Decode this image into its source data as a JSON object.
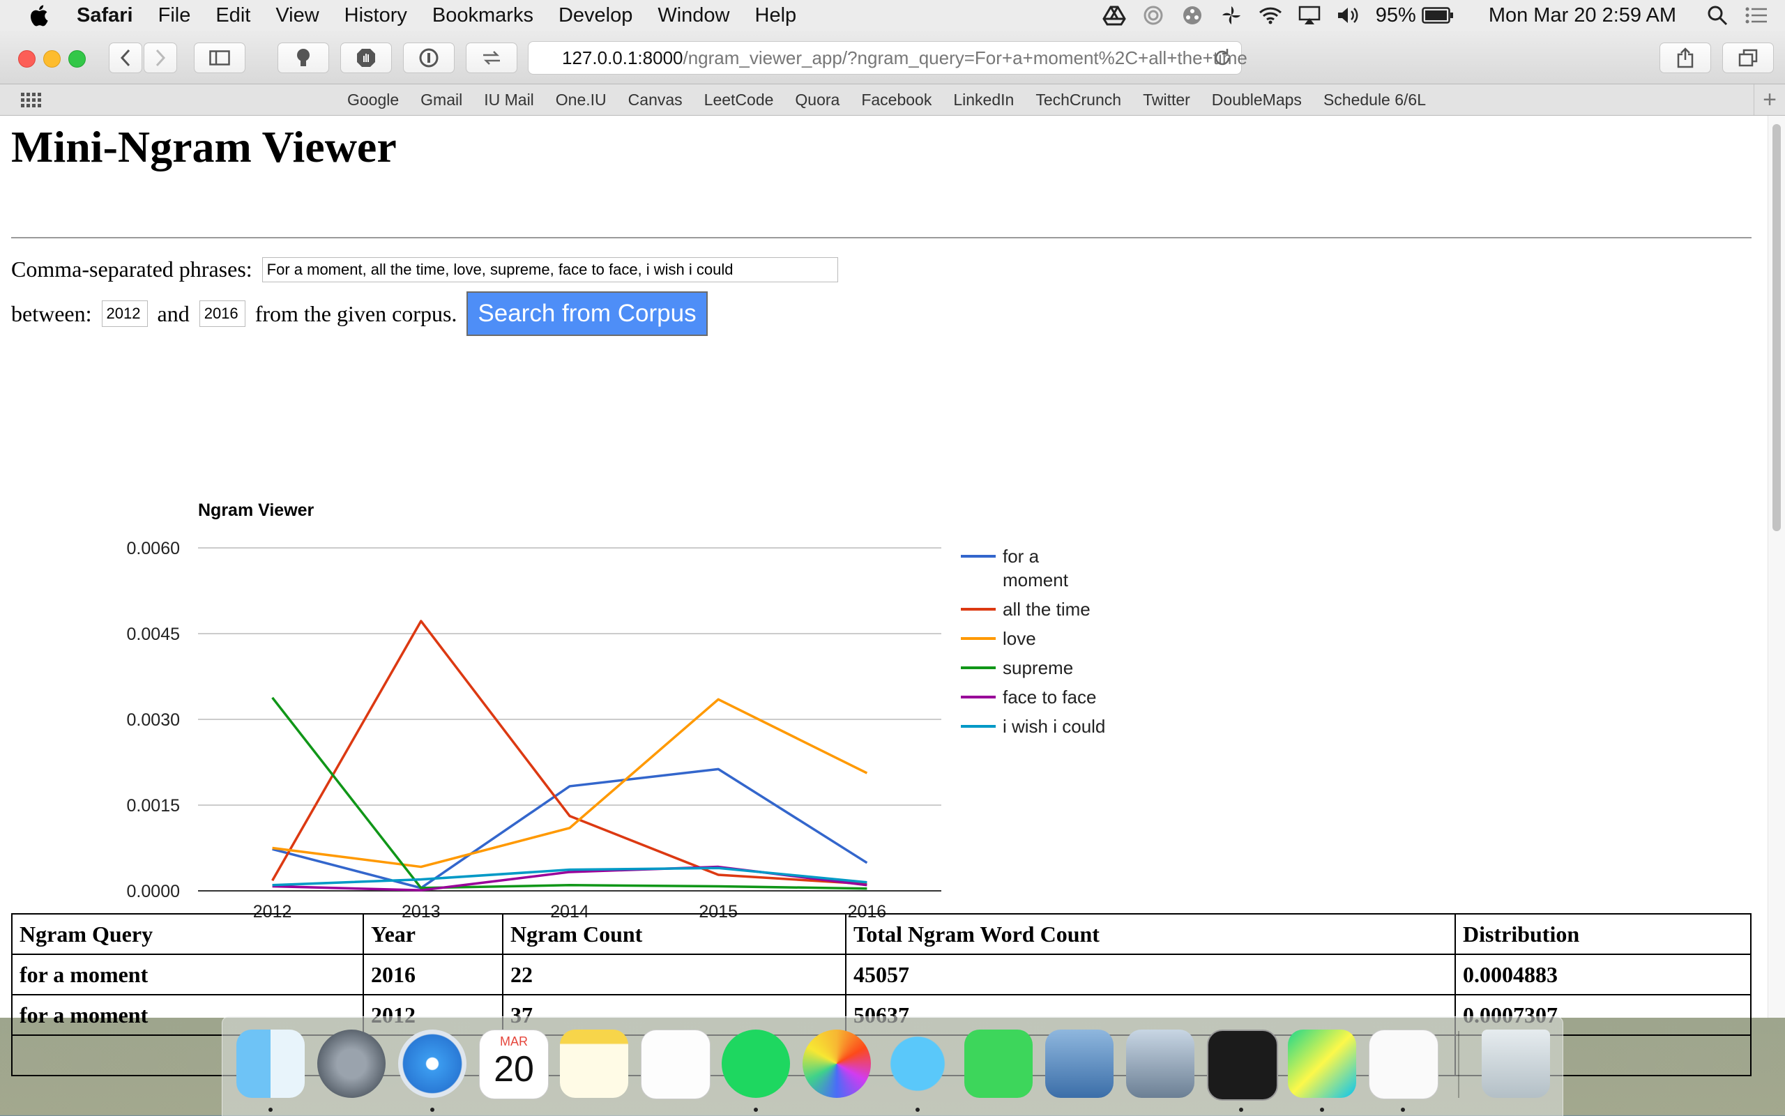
{
  "menubar": {
    "app_name": "Safari",
    "items": [
      "File",
      "Edit",
      "View",
      "History",
      "Bookmarks",
      "Develop",
      "Window",
      "Help"
    ],
    "battery": "95%",
    "datetime": "Mon Mar 20  2:59 AM"
  },
  "browser": {
    "url_host": "127.0.0.1:8000",
    "url_path": "/ngram_viewer_app/?ngram_query=For+a+moment%2C+all+the+time",
    "favorites": [
      "Google",
      "Gmail",
      "IU Mail",
      "One.IU",
      "Canvas",
      "LeetCode",
      "Quora",
      "Facebook",
      "LinkedIn",
      "TechCrunch",
      "Twitter",
      "DoubleMaps",
      "Schedule 6/6L"
    ]
  },
  "page": {
    "title": "Mini-Ngram Viewer",
    "phrases_label": "Comma-separated phrases:",
    "phrases_value": "For a moment, all the time, love, supreme, face to face, i wish i could",
    "between_label": "between:",
    "and_label": "and",
    "start_year": "2012",
    "end_year": "2016",
    "corpus_label": "from the given corpus.",
    "search_button": "Search from Corpus"
  },
  "chart_data": {
    "type": "line",
    "title": "Ngram Viewer",
    "x": [
      2012,
      2013,
      2014,
      2015,
      2016
    ],
    "ylim": [
      0,
      0.006
    ],
    "yticks": [
      "0.0000",
      "0.0015",
      "0.0030",
      "0.0045",
      "0.0060"
    ],
    "grid": true,
    "legend": "right",
    "series": [
      {
        "name": "for a moment",
        "color": "#3366cc",
        "values": [
          0.00073,
          5e-05,
          0.00183,
          0.00213,
          0.00049
        ]
      },
      {
        "name": "all the time",
        "color": "#dc3912",
        "values": [
          0.00018,
          0.00472,
          0.00131,
          0.00028,
          0.00012
        ]
      },
      {
        "name": "love",
        "color": "#ff9900",
        "values": [
          0.00075,
          0.00042,
          0.0011,
          0.00335,
          0.00206
        ]
      },
      {
        "name": "supreme",
        "color": "#109618",
        "values": [
          0.00338,
          5e-05,
          0.0001,
          8e-05,
          4e-05
        ]
      },
      {
        "name": "face to face",
        "color": "#990099",
        "values": [
          8e-05,
          1e-05,
          0.00033,
          0.00042,
          0.0001
        ]
      },
      {
        "name": "i wish i could",
        "color": "#0099c6",
        "values": [
          0.0001,
          0.0002,
          0.00037,
          0.0004,
          0.00015
        ]
      }
    ]
  },
  "table": {
    "headers": [
      "Ngram Query",
      "Year",
      "Ngram Count",
      "Total Ngram Word Count",
      "Distribution"
    ],
    "rows": [
      [
        "for a moment",
        "2016",
        "22",
        "45057",
        "0.0004883"
      ],
      [
        "for a moment",
        "2012",
        "37",
        "50637",
        "0.0007307"
      ]
    ]
  },
  "dock": {
    "apps": [
      "finder",
      "launchpad",
      "safari",
      "calendar",
      "notes",
      "reminders",
      "spotify",
      "photos",
      "messages",
      "facetime",
      "preview",
      "image-capture",
      "terminal",
      "pycharm",
      "textedit",
      "trash"
    ],
    "calendar_month": "MAR",
    "calendar_day": "20"
  }
}
